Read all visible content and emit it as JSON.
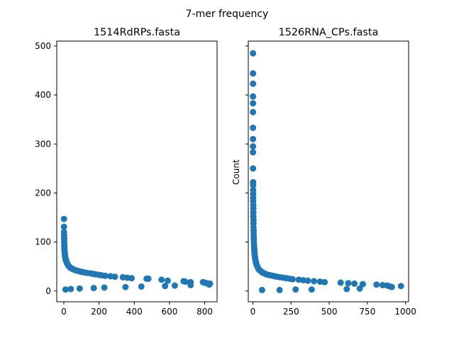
{
  "figure": {
    "suptitle": "7-mer frequency",
    "marker_color": "#1f77b4"
  },
  "chart_data": [
    {
      "type": "scatter",
      "title": "1514RdRPs.fasta",
      "xlabel": "",
      "ylabel": "",
      "xlim": [
        -40,
        870
      ],
      "ylim": [
        -22,
        510
      ],
      "xticks": [
        0,
        200,
        400,
        600,
        800
      ],
      "yticks": [
        0,
        100,
        200,
        300,
        400,
        500
      ],
      "grid": false,
      "points": [
        [
          1,
          147
        ],
        [
          1,
          131
        ],
        [
          1,
          120
        ],
        [
          2,
          113
        ],
        [
          2,
          107
        ],
        [
          2,
          101
        ],
        [
          3,
          96
        ],
        [
          3,
          92
        ],
        [
          3,
          88
        ],
        [
          4,
          84
        ],
        [
          4,
          81
        ],
        [
          5,
          78
        ],
        [
          6,
          75
        ],
        [
          7,
          72
        ],
        [
          8,
          70
        ],
        [
          9,
          67
        ],
        [
          10,
          65
        ],
        [
          12,
          63
        ],
        [
          14,
          61
        ],
        [
          16,
          59
        ],
        [
          18,
          57
        ],
        [
          21,
          55
        ],
        [
          24,
          53
        ],
        [
          27,
          51
        ],
        [
          31,
          50
        ],
        [
          35,
          48
        ],
        [
          40,
          47
        ],
        [
          45,
          46
        ],
        [
          50,
          45
        ],
        [
          55,
          44
        ],
        [
          62,
          43
        ],
        [
          70,
          42
        ],
        [
          80,
          41
        ],
        [
          90,
          40
        ],
        [
          100,
          39
        ],
        [
          115,
          38
        ],
        [
          130,
          37
        ],
        [
          150,
          36
        ],
        [
          165,
          35
        ],
        [
          180,
          34
        ],
        [
          200,
          33
        ],
        [
          215,
          32
        ],
        [
          235,
          31
        ],
        [
          265,
          30
        ],
        [
          290,
          29
        ],
        [
          335,
          28
        ],
        [
          360,
          27
        ],
        [
          385,
          26
        ],
        [
          470,
          25
        ],
        [
          480,
          25
        ],
        [
          555,
          23
        ],
        [
          590,
          21
        ],
        [
          680,
          20
        ],
        [
          690,
          19
        ],
        [
          720,
          18
        ],
        [
          790,
          18
        ],
        [
          800,
          17
        ],
        [
          810,
          16
        ],
        [
          830,
          15
        ],
        [
          825,
          13
        ],
        [
          720,
          12
        ],
        [
          630,
          11
        ],
        [
          575,
          10
        ],
        [
          440,
          9
        ],
        [
          350,
          8
        ],
        [
          230,
          7
        ],
        [
          170,
          6
        ],
        [
          90,
          5
        ],
        [
          40,
          4
        ],
        [
          10,
          3
        ]
      ]
    },
    {
      "type": "scatter",
      "title": "1526RNA_CPs.fasta",
      "xlabel": "",
      "ylabel": "Count",
      "xlim": [
        -30,
        1020
      ],
      "ylim": [
        -22,
        510
      ],
      "xticks": [
        0,
        250,
        500,
        750,
        1000
      ],
      "yticks": [
        0,
        100,
        200,
        300,
        400,
        500
      ],
      "grid": false,
      "points": [
        [
          1,
          485
        ],
        [
          1,
          444
        ],
        [
          1,
          423
        ],
        [
          1,
          397
        ],
        [
          1,
          383
        ],
        [
          1,
          365
        ],
        [
          1,
          333
        ],
        [
          1,
          310
        ],
        [
          1,
          295
        ],
        [
          1,
          283
        ],
        [
          1,
          250
        ],
        [
          2,
          222
        ],
        [
          2,
          216
        ],
        [
          2,
          206
        ],
        [
          2,
          198
        ],
        [
          2,
          190
        ],
        [
          2,
          183
        ],
        [
          3,
          175
        ],
        [
          3,
          168
        ],
        [
          3,
          160
        ],
        [
          3,
          152
        ],
        [
          4,
          145
        ],
        [
          4,
          138
        ],
        [
          4,
          130
        ],
        [
          5,
          123
        ],
        [
          5,
          116
        ],
        [
          6,
          110
        ],
        [
          6,
          104
        ],
        [
          7,
          98
        ],
        [
          8,
          92
        ],
        [
          9,
          87
        ],
        [
          10,
          82
        ],
        [
          11,
          77
        ],
        [
          12,
          73
        ],
        [
          14,
          69
        ],
        [
          16,
          65
        ],
        [
          18,
          61
        ],
        [
          21,
          57
        ],
        [
          24,
          54
        ],
        [
          28,
          51
        ],
        [
          32,
          48
        ],
        [
          37,
          45
        ],
        [
          42,
          43
        ],
        [
          50,
          41
        ],
        [
          58,
          39
        ],
        [
          66,
          37
        ],
        [
          76,
          36
        ],
        [
          88,
          34
        ],
        [
          100,
          33
        ],
        [
          115,
          32
        ],
        [
          130,
          31
        ],
        [
          145,
          30
        ],
        [
          160,
          29
        ],
        [
          180,
          28
        ],
        [
          200,
          27
        ],
        [
          220,
          26
        ],
        [
          240,
          25
        ],
        [
          260,
          24
        ],
        [
          300,
          23
        ],
        [
          330,
          22
        ],
        [
          360,
          21
        ],
        [
          400,
          20
        ],
        [
          440,
          19
        ],
        [
          470,
          18
        ],
        [
          575,
          17
        ],
        [
          625,
          16
        ],
        [
          665,
          15
        ],
        [
          720,
          14
        ],
        [
          810,
          13
        ],
        [
          850,
          12
        ],
        [
          880,
          11
        ],
        [
          970,
          10
        ],
        [
          900,
          9
        ],
        [
          910,
          8
        ],
        [
          700,
          5
        ],
        [
          615,
          4
        ],
        [
          385,
          3
        ],
        [
          280,
          3
        ],
        [
          175,
          2
        ],
        [
          60,
          2
        ]
      ]
    }
  ]
}
